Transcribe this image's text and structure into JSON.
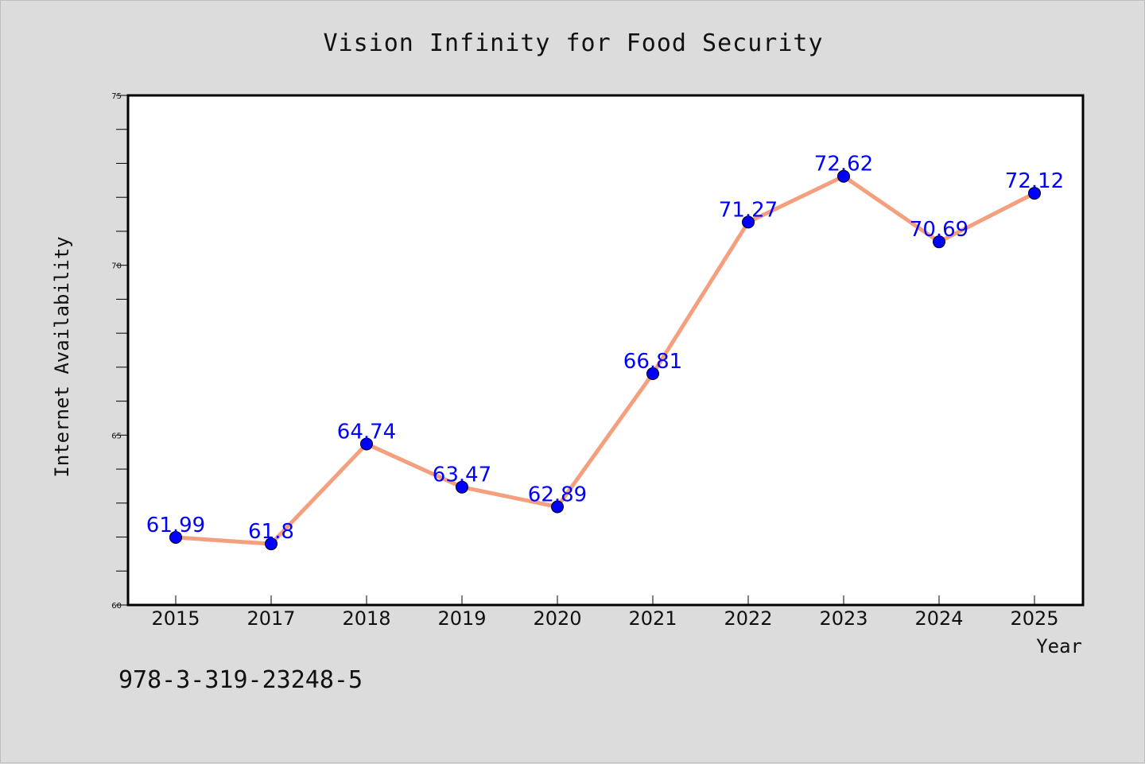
{
  "chart_data": {
    "type": "line",
    "title": "Vision Infinity for Food Security",
    "xlabel": "Year",
    "ylabel": "Internet Availability",
    "categories": [
      "2015",
      "2017",
      "2018",
      "2019",
      "2020",
      "2021",
      "2022",
      "2023",
      "2024",
      "2025"
    ],
    "series": [
      {
        "values": [
          61.99,
          61.8,
          64.74,
          63.47,
          62.89,
          66.81,
          71.27,
          72.62,
          70.69,
          72.12
        ],
        "labels": [
          "61.99",
          "61.8",
          "64.74",
          "63.47",
          "62.89",
          "66.81",
          "71.27",
          "72.62",
          "70.69",
          "72.12"
        ],
        "line_color": "#f4a07e",
        "marker_color": "#0000ff"
      }
    ],
    "ylim": [
      60,
      75
    ],
    "yticks": [
      "60",
      "65",
      "70",
      "75"
    ],
    "grid": false,
    "legend": "none"
  },
  "footer": {
    "text": "978-3-319-23248-5"
  }
}
